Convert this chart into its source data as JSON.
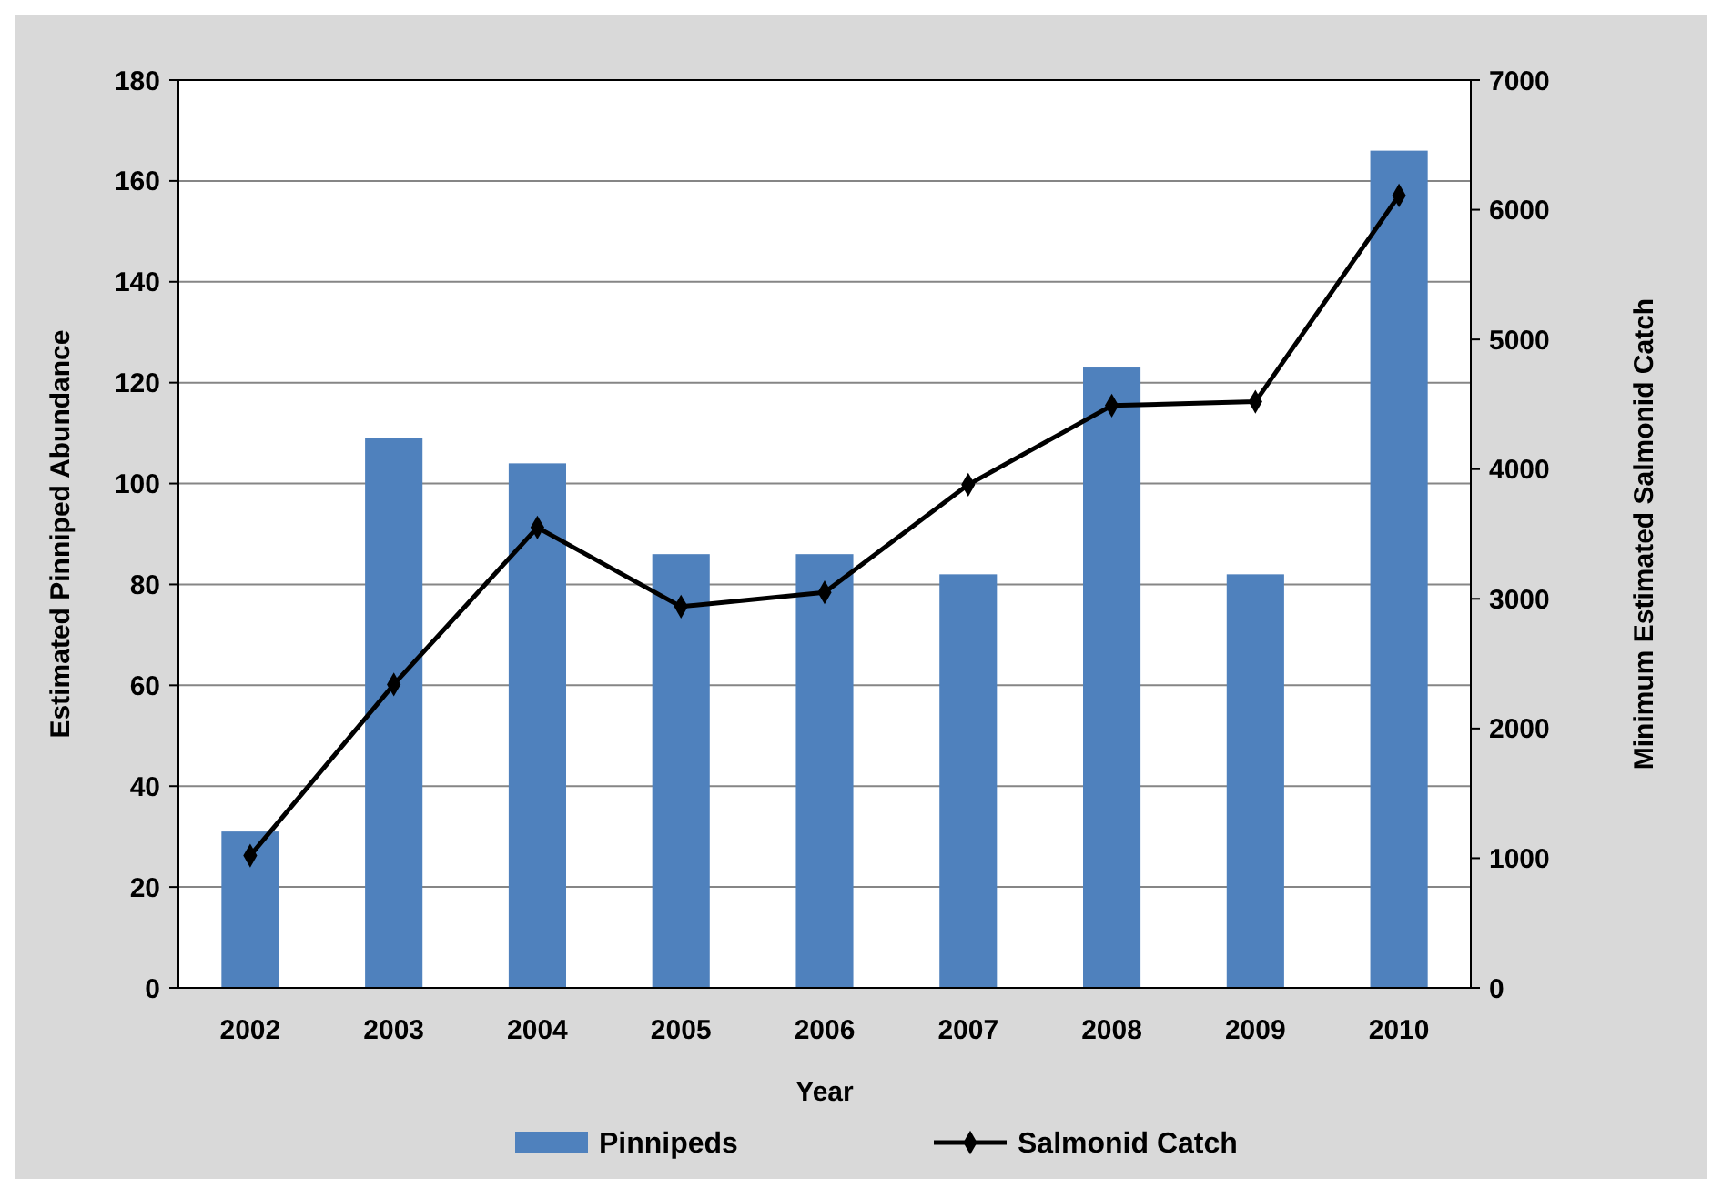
{
  "chart_data": {
    "type": "bar",
    "xlabel": "Year",
    "ylabel": "Estimated Pinniped Abundance",
    "y2label": "Minimum Estimated Salmonid Catch",
    "categories": [
      "2002",
      "2003",
      "2004",
      "2005",
      "2006",
      "2007",
      "2008",
      "2009",
      "2010"
    ],
    "series": [
      {
        "name": "Pinnipeds",
        "color": "#4f81bd",
        "values": [
          31,
          109,
          104,
          86,
          86,
          82,
          123,
          82,
          166
        ]
      },
      {
        "name": "Salmonid Catch",
        "type": "line",
        "axis": "y2",
        "color": "#000000",
        "marker": "diamond",
        "values": [
          1020,
          2340,
          3550,
          2940,
          3050,
          3880,
          4490,
          4520,
          6110
        ]
      }
    ],
    "ylim": [
      0,
      180
    ],
    "yticks": [
      0,
      20,
      40,
      60,
      80,
      100,
      120,
      140,
      160,
      180
    ],
    "y2lim": [
      0,
      7000
    ],
    "y2ticks": [
      0,
      1000,
      2000,
      3000,
      4000,
      5000,
      6000,
      7000
    ],
    "grid": "y",
    "legend": "bottom"
  }
}
